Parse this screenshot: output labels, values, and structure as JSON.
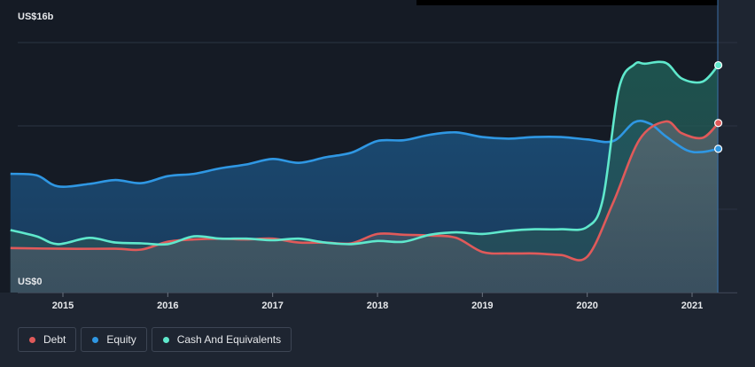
{
  "chart_data": {
    "type": "area",
    "ylabel_top": "US$16b",
    "ylabel_bottom": "US$0",
    "ylim": [
      0,
      16
    ],
    "xlim": [
      2014.4,
      2021.6
    ],
    "x_ticks": [
      "2015",
      "2016",
      "2017",
      "2018",
      "2019",
      "2020",
      "2021"
    ],
    "x_tick_values": [
      2015,
      2016,
      2017,
      2018,
      2019,
      2020,
      2021
    ],
    "grid": true,
    "legend_position": "bottom-left",
    "series": [
      {
        "name": "Cash And Equivalents",
        "color": "#5fe8cc",
        "x": [
          2014.5,
          2014.75,
          2014.95,
          2015.25,
          2015.5,
          2015.75,
          2016.0,
          2016.25,
          2016.5,
          2016.75,
          2017.0,
          2017.25,
          2017.5,
          2017.75,
          2018.0,
          2018.25,
          2018.5,
          2018.75,
          2019.0,
          2019.25,
          2019.5,
          2019.75,
          2020.0,
          2020.15,
          2020.3,
          2020.45,
          2020.55,
          2020.75,
          2020.9,
          2021.1,
          2021.25
        ],
        "values": [
          4.0,
          3.6,
          3.1,
          3.5,
          3.2,
          3.15,
          3.1,
          3.6,
          3.45,
          3.45,
          3.35,
          3.45,
          3.2,
          3.1,
          3.3,
          3.25,
          3.7,
          3.85,
          3.75,
          3.95,
          4.05,
          4.05,
          4.2,
          6.0,
          13.0,
          14.6,
          14.65,
          14.7,
          13.7,
          13.5,
          14.55
        ]
      },
      {
        "name": "Debt",
        "color": "#e05a5a",
        "x": [
          2014.5,
          2015.0,
          2015.5,
          2015.75,
          2016.0,
          2016.25,
          2016.5,
          2016.75,
          2017.0,
          2017.25,
          2017.5,
          2017.75,
          2018.0,
          2018.25,
          2018.5,
          2018.75,
          2019.0,
          2019.25,
          2019.5,
          2019.75,
          2020.0,
          2020.25,
          2020.5,
          2020.75,
          2020.9,
          2021.1,
          2021.25
        ],
        "values": [
          2.85,
          2.8,
          2.8,
          2.75,
          3.25,
          3.4,
          3.45,
          3.4,
          3.45,
          3.2,
          3.2,
          3.15,
          3.75,
          3.7,
          3.65,
          3.5,
          2.6,
          2.5,
          2.5,
          2.4,
          2.3,
          5.8,
          9.8,
          10.95,
          10.2,
          9.9,
          10.85
        ]
      },
      {
        "name": "Equity",
        "color": "#2f97e3",
        "x": [
          2014.5,
          2014.75,
          2014.95,
          2015.25,
          2015.5,
          2015.75,
          2016.0,
          2016.25,
          2016.5,
          2016.75,
          2017.0,
          2017.25,
          2017.5,
          2017.75,
          2018.0,
          2018.25,
          2018.5,
          2018.75,
          2019.0,
          2019.25,
          2019.5,
          2019.75,
          2020.0,
          2020.25,
          2020.45,
          2020.6,
          2020.75,
          2020.95,
          2021.1,
          2021.25
        ],
        "values": [
          7.6,
          7.5,
          6.8,
          6.95,
          7.2,
          7.0,
          7.45,
          7.6,
          7.95,
          8.2,
          8.55,
          8.3,
          8.65,
          8.95,
          9.7,
          9.75,
          10.1,
          10.25,
          9.95,
          9.85,
          9.95,
          9.95,
          9.8,
          9.7,
          10.9,
          10.8,
          10.0,
          9.1,
          9.0,
          9.2
        ]
      }
    ]
  },
  "legend": [
    {
      "label": "Debt",
      "color": "#e05a5a"
    },
    {
      "label": "Equity",
      "color": "#2f97e3"
    },
    {
      "label": "Cash And Equivalents",
      "color": "#5fe8cc"
    }
  ]
}
